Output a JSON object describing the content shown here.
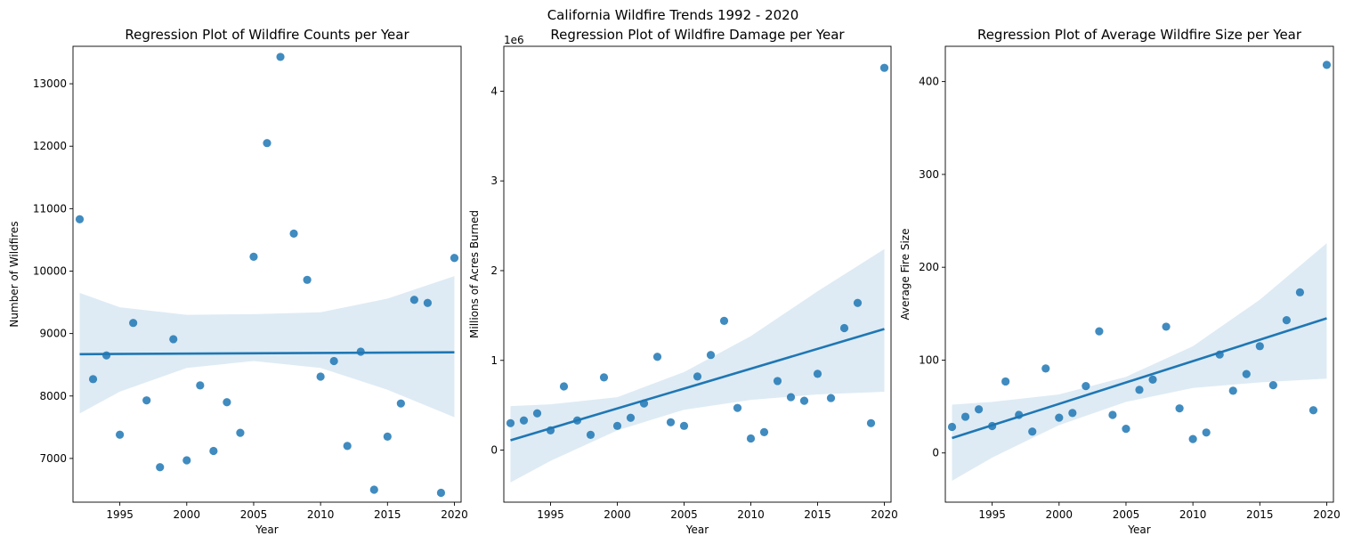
{
  "suptitle": "California Wildfire Trends 1992 - 2020",
  "colors": {
    "point": "#1f77b4",
    "line": "#1f77b4",
    "band": "#1f77b4"
  },
  "chart_data": [
    {
      "type": "scatter",
      "title": "Regression Plot of Wildfire Counts per Year",
      "xlabel": "Year",
      "ylabel": "Number of Wildfires",
      "xlim": [
        1991.5,
        2020.5
      ],
      "ylim": [
        6300,
        13600
      ],
      "xticks": [
        1995,
        2000,
        2005,
        2010,
        2015,
        2020
      ],
      "xtick_labels": [
        "1995",
        "2000",
        "2005",
        "2010",
        "2015",
        "2020"
      ],
      "yticks": [
        7000,
        8000,
        9000,
        10000,
        11000,
        12000,
        13000
      ],
      "ytick_labels": [
        "7000",
        "8000",
        "9000",
        "10000",
        "11000",
        "12000",
        "13000"
      ],
      "offset_label": "",
      "x": [
        1992,
        1993,
        1994,
        1995,
        1996,
        1997,
        1998,
        1999,
        2000,
        2001,
        2002,
        2003,
        2004,
        2005,
        2006,
        2007,
        2008,
        2009,
        2010,
        2011,
        2012,
        2013,
        2014,
        2015,
        2016,
        2017,
        2018,
        2019,
        2020
      ],
      "y": [
        10830,
        8270,
        8650,
        7380,
        9170,
        7930,
        6860,
        8910,
        6970,
        8170,
        7120,
        7900,
        7410,
        10230,
        12050,
        13430,
        10600,
        9860,
        8310,
        8560,
        7200,
        8710,
        6500,
        7350,
        7880,
        9540,
        9490,
        6450,
        10210
      ],
      "regression": {
        "x": [
          1992,
          2020
        ],
        "y": [
          8670,
          8700
        ]
      },
      "ci": {
        "x": [
          1992,
          1995,
          2000,
          2005,
          2010,
          2015,
          2020
        ],
        "lower": [
          7720,
          8070,
          8450,
          8560,
          8450,
          8100,
          7660
        ],
        "upper": [
          9650,
          9420,
          9300,
          9310,
          9340,
          9560,
          9920
        ]
      }
    },
    {
      "type": "scatter",
      "title": "Regression Plot of Wildfire Damage per Year",
      "xlabel": "Year",
      "ylabel": "Millions of Acres Burned",
      "xlim": [
        1991.5,
        2020.5
      ],
      "ylim": [
        -0.58,
        4.5
      ],
      "xticks": [
        1995,
        2000,
        2005,
        2010,
        2015,
        2020
      ],
      "xtick_labels": [
        "1995",
        "2000",
        "2005",
        "2010",
        "2015",
        "2020"
      ],
      "yticks": [
        0,
        1,
        2,
        3,
        4
      ],
      "ytick_labels": [
        "0",
        "1",
        "2",
        "3",
        "4"
      ],
      "offset_label": "1e6",
      "x": [
        1992,
        1993,
        1994,
        1995,
        1996,
        1997,
        1998,
        1999,
        2000,
        2001,
        2002,
        2003,
        2004,
        2005,
        2006,
        2007,
        2008,
        2009,
        2010,
        2011,
        2012,
        2013,
        2014,
        2015,
        2016,
        2017,
        2018,
        2019,
        2020
      ],
      "y": [
        0.3,
        0.33,
        0.41,
        0.22,
        0.71,
        0.33,
        0.17,
        0.81,
        0.27,
        0.36,
        0.52,
        1.04,
        0.31,
        0.27,
        0.82,
        1.06,
        1.44,
        0.47,
        0.13,
        0.2,
        0.77,
        0.59,
        0.55,
        0.85,
        0.58,
        1.36,
        1.64,
        0.3,
        4.26
      ],
      "regression": {
        "x": [
          1992,
          2020
        ],
        "y": [
          0.11,
          1.35
        ]
      },
      "ci": {
        "x": [
          1992,
          1995,
          2000,
          2005,
          2010,
          2015,
          2020
        ],
        "lower": [
          -0.36,
          -0.12,
          0.22,
          0.45,
          0.56,
          0.62,
          0.65
        ],
        "upper": [
          0.49,
          0.51,
          0.59,
          0.87,
          1.27,
          1.77,
          2.24
        ]
      }
    },
    {
      "type": "scatter",
      "title": "Regression Plot of Average Wildfire Size per Year",
      "xlabel": "Year",
      "ylabel": "Average Fire Size",
      "xlim": [
        1991.5,
        2020.5
      ],
      "ylim": [
        -53,
        438
      ],
      "xticks": [
        1995,
        2000,
        2005,
        2010,
        2015,
        2020
      ],
      "xtick_labels": [
        "1995",
        "2000",
        "2005",
        "2010",
        "2015",
        "2020"
      ],
      "yticks": [
        0,
        100,
        200,
        300,
        400
      ],
      "ytick_labels": [
        "0",
        "100",
        "200",
        "300",
        "400"
      ],
      "offset_label": "",
      "x": [
        1992,
        1993,
        1994,
        1995,
        1996,
        1997,
        1998,
        1999,
        2000,
        2001,
        2002,
        2003,
        2004,
        2005,
        2006,
        2007,
        2008,
        2009,
        2010,
        2011,
        2012,
        2013,
        2014,
        2015,
        2016,
        2017,
        2018,
        2019,
        2020
      ],
      "y": [
        28,
        39,
        47,
        29,
        77,
        41,
        23,
        91,
        38,
        43,
        72,
        131,
        41,
        26,
        68,
        79,
        136,
        48,
        15,
        22,
        106,
        67,
        85,
        115,
        73,
        143,
        173,
        46,
        418
      ],
      "regression": {
        "x": [
          1992,
          2020
        ],
        "y": [
          16,
          145
        ]
      },
      "ci": {
        "x": [
          1992,
          1995,
          2000,
          2005,
          2010,
          2015,
          2020
        ],
        "lower": [
          -30,
          -5,
          30,
          55,
          70,
          76,
          80
        ],
        "upper": [
          52,
          55,
          63,
          82,
          115,
          165,
          226
        ]
      }
    }
  ]
}
